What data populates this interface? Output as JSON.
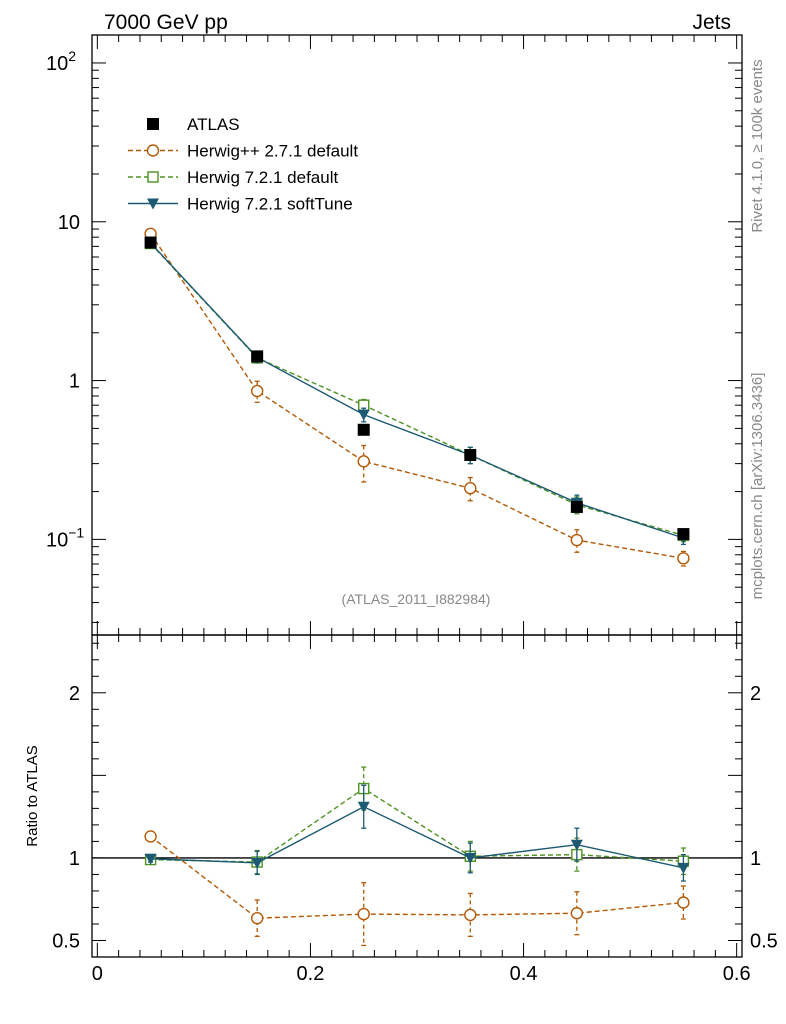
{
  "chart_data": {
    "type": "line",
    "header": {
      "left": "7000 GeV pp",
      "right": "Jets"
    },
    "watermark": "(ATLAS_2011_I882984)",
    "side_text": {
      "top": "Rivet 4.1.0, ≥ 100k events",
      "bottom": "mcplots.cern.ch [arXiv:1306.3436]"
    },
    "x": [
      0.05,
      0.15,
      0.25,
      0.35,
      0.45,
      0.55
    ],
    "xlim": [
      -0.005,
      0.605
    ],
    "x_ticks": [
      0,
      0.2,
      0.4,
      0.6
    ],
    "x_tick_labels": [
      "0",
      "0.2",
      "0.4",
      "0.6"
    ],
    "main": {
      "yscale": "log",
      "ylim": [
        0.025,
        150
      ],
      "y_ticks": [
        {
          "value": 0.1,
          "base": "10",
          "exp": "−1"
        },
        {
          "value": 1,
          "base": "1",
          "exp": ""
        },
        {
          "value": 10,
          "base": "10",
          "exp": ""
        },
        {
          "value": 100,
          "base": "10",
          "exp": "2"
        }
      ]
    },
    "ratio": {
      "ylabel": "Ratio to ATLAS",
      "ylim": [
        0.4,
        2.35
      ],
      "reference": 1,
      "y_ticks": [
        {
          "value": 0.5,
          "label": "0.5"
        },
        {
          "value": 1,
          "label": "1"
        },
        {
          "value": 2,
          "label": "2"
        }
      ]
    },
    "series": [
      {
        "name": "ATLAS",
        "color": "#000000",
        "marker": "square-filled",
        "line": "none",
        "values": [
          7.4,
          1.42,
          0.49,
          0.34,
          0.16,
          0.108
        ]
      },
      {
        "name": "Herwig++ 2.7.1 default",
        "color": "#b35806",
        "marker": "circle-open",
        "line": "dashed",
        "values": [
          8.4,
          0.86,
          0.31,
          0.21,
          0.099,
          0.076
        ],
        "errors": [
          0.3,
          0.13,
          0.08,
          0.035,
          0.016,
          0.008
        ],
        "ratio": [
          1.13,
          0.635,
          0.66,
          0.655,
          0.665,
          0.73
        ],
        "ratio_errors": [
          0.03,
          0.11,
          0.19,
          0.13,
          0.13,
          0.1
        ]
      },
      {
        "name": "Herwig 7.2.1 default",
        "color": "#4d9221",
        "marker": "square-open",
        "line": "dashed",
        "values": [
          7.3,
          1.39,
          0.7,
          0.34,
          0.165,
          0.106
        ],
        "errors": [
          0.25,
          0.1,
          0.06,
          0.04,
          0.02,
          0.009
        ],
        "ratio": [
          0.99,
          0.975,
          1.42,
          1.01,
          1.02,
          0.98
        ],
        "ratio_errors": [
          0.02,
          0.07,
          0.13,
          0.09,
          0.1,
          0.08
        ]
      },
      {
        "name": "Herwig 7.2.1 softTune",
        "color": "#1c5a73",
        "marker": "triangle-down-filled",
        "line": "solid",
        "values": [
          7.35,
          1.4,
          0.61,
          0.34,
          0.17,
          0.102
        ],
        "errors": [
          0.25,
          0.1,
          0.06,
          0.04,
          0.02,
          0.009
        ],
        "ratio": [
          0.995,
          0.97,
          1.31,
          1.0,
          1.08,
          0.94
        ],
        "ratio_errors": [
          0.02,
          0.07,
          0.13,
          0.09,
          0.1,
          0.08
        ]
      }
    ]
  }
}
